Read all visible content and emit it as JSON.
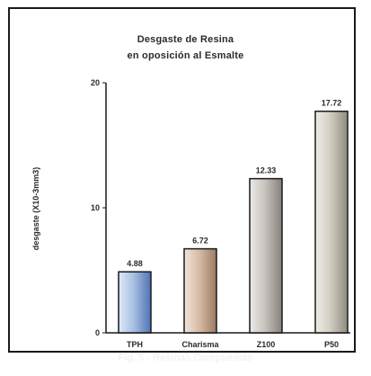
{
  "chart_data": {
    "type": "bar",
    "title_line1": "Desgaste de Resina",
    "title_line2": "en oposición al Esmalte",
    "ylabel": "desgaste (X10-3mm3)",
    "xlabel": "",
    "ylim": [
      0,
      20
    ],
    "yticks": [
      "20",
      "10",
      "0"
    ],
    "ytick_values": [
      20,
      10,
      0
    ],
    "categories": [
      "TPH",
      "Charisma",
      "Z100",
      "P50"
    ],
    "values": [
      4.88,
      6.72,
      12.33,
      17.72
    ],
    "value_labels": [
      "4.88",
      "6.72",
      "12.33",
      "17.72"
    ],
    "bar_styles": [
      {
        "light": "#dfe9f7",
        "mid": "#a9c1e3",
        "dark": "#4f73b3"
      },
      {
        "light": "#f1e6dc",
        "mid": "#d9bda6",
        "dark": "#9b7a63"
      },
      {
        "light": "#ebe9e6",
        "mid": "#c9c5c0",
        "dark": "#86807a"
      },
      {
        "light": "#eeede6",
        "mid": "#d2cfc3",
        "dark": "#8f8b7e"
      }
    ],
    "grid": false,
    "legend": "none"
  },
  "caption": "Fig. 5 - Resinas Compuestas"
}
